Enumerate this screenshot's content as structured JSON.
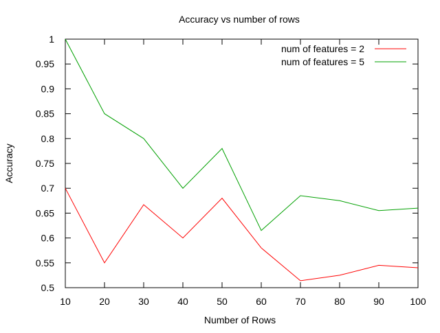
{
  "chart_data": {
    "type": "line",
    "title": "Accuracy vs number of rows",
    "xlabel": "Number of Rows",
    "ylabel": "Accuracy",
    "x": [
      10,
      20,
      30,
      40,
      50,
      60,
      70,
      80,
      90,
      100
    ],
    "xlim": [
      10,
      100
    ],
    "ylim": [
      0.5,
      1
    ],
    "xticks": [
      10,
      20,
      30,
      40,
      50,
      60,
      70,
      80,
      90,
      100
    ],
    "yticks": [
      0.5,
      0.55,
      0.6,
      0.65,
      0.7,
      0.75,
      0.8,
      0.85,
      0.9,
      0.95,
      1
    ],
    "ytick_labels": [
      "0.5",
      "0.55",
      "0.6",
      "0.65",
      "0.7",
      "0.75",
      "0.8",
      "0.85",
      "0.9",
      "0.95",
      "1"
    ],
    "grid": false,
    "legend_position": "top-right",
    "series": [
      {
        "name": "num of features = 2",
        "color": "#ff0000",
        "values": [
          0.7,
          0.55,
          0.667,
          0.6,
          0.68,
          0.58,
          0.514,
          0.525,
          0.545,
          0.54
        ]
      },
      {
        "name": "num of features = 5",
        "color": "#00a000",
        "values": [
          1.0,
          0.85,
          0.8,
          0.7,
          0.78,
          0.615,
          0.685,
          0.675,
          0.655,
          0.66
        ]
      }
    ]
  }
}
